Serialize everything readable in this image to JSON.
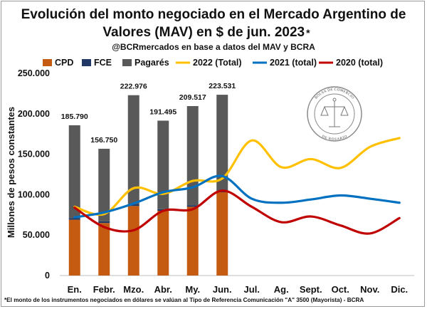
{
  "chart_data": {
    "type": "bar",
    "title_line1": "Evolución del monto negociado en el Mercado Argentino de",
    "title_line2": "Valores (MAV) en $ de jun. 2023",
    "title_mark": "*",
    "subtitle": "@BCRmercados en base a datos del MAV y BCRA",
    "ylabel": "Millones de pesos constantes",
    "ylim": [
      0,
      250000
    ],
    "yticks": [
      "0",
      "50.000",
      "100.000",
      "150.000",
      "200.000",
      "250.000"
    ],
    "categories": [
      "En.",
      "Febr.",
      "Mzo.",
      "Abr.",
      "My.",
      "Jun.",
      "Jul.",
      "Ag.",
      "Sept.",
      "Oct.",
      "Nov.",
      "Dic."
    ],
    "stacked_series": [
      {
        "name": "CPD",
        "color": "#c55a11",
        "values": [
          69000,
          65000,
          86000,
          80000,
          85000,
          103000
        ]
      },
      {
        "name": "FCE",
        "color": "#1f3864",
        "values": [
          2000,
          2000,
          2000,
          2000,
          2000,
          2000
        ]
      },
      {
        "name": "Pagarés",
        "color": "#595959",
        "values": [
          114790,
          89750,
          134976,
          109495,
          122517,
          118531
        ]
      }
    ],
    "bar_totals": [
      "185.790",
      "156.750",
      "222.976",
      "191.495",
      "209.517",
      "223.531"
    ],
    "line_series": [
      {
        "name": "2022 (Total)",
        "color": "#ffc000",
        "values": [
          85000,
          76000,
          108000,
          101000,
          117000,
          120000,
          167000,
          134000,
          144000,
          133000,
          159000,
          170000
        ]
      },
      {
        "name": "2021 (total)",
        "color": "#0070c0",
        "values": [
          72000,
          78000,
          89000,
          103000,
          109000,
          123000,
          95000,
          90000,
          94000,
          99000,
          95000,
          90000
        ]
      },
      {
        "name": "2020 (total)",
        "color": "#c00000",
        "values": [
          84000,
          60000,
          56000,
          80000,
          82000,
          105000,
          85000,
          66000,
          73000,
          62000,
          52000,
          71000
        ]
      }
    ],
    "grid": false,
    "legend_position": "top"
  },
  "seal": {
    "ring_top": "BOLSA DE COMERCIO",
    "ring_bottom": "DE ROSARIO"
  },
  "footnote": "*El monto de los instrumentos negociados en dólares se valúan al Tipo de Referencia Comunicación \"A\" 3500 (Mayorista) - BCRA"
}
